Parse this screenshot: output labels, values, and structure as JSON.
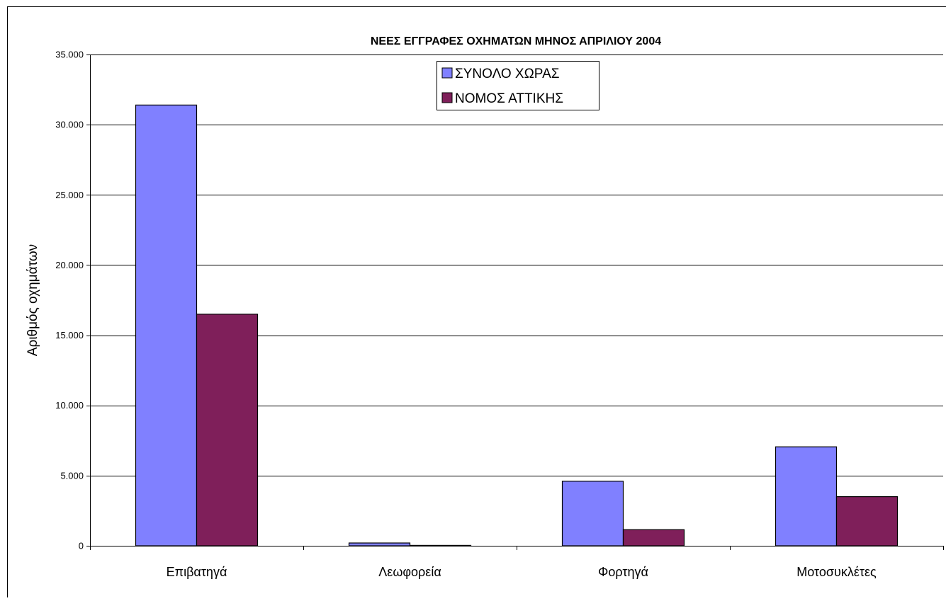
{
  "chart_data": {
    "type": "bar",
    "title": "ΝΕΕΣ ΕΓΓΡΑΦΕΣ ΟΧΗΜΑΤΩΝ ΜΗΝΟΣ ΑΠΡΙΛΙΟΥ 2004",
    "xlabel": "",
    "ylabel": "Αριθμός οχημάτων",
    "categories": [
      "Επιβατηγά",
      "Λεωφορεία",
      "Φορτηγά",
      "Μοτοσυκλέτες"
    ],
    "series": [
      {
        "name": "ΣΥΝΟΛΟ ΧΩΡΑΣ",
        "color": "#8080FF",
        "values": [
          31400,
          200,
          4600,
          7050
        ]
      },
      {
        "name": "ΝΟΜΟΣ ΑΤΤΙΚΗΣ",
        "color": "#7F1F5A",
        "values": [
          16500,
          30,
          1150,
          3500
        ]
      }
    ],
    "ylim": [
      0,
      35000
    ],
    "yticks": [
      0,
      5000,
      10000,
      15000,
      20000,
      25000,
      30000,
      35000
    ],
    "ytick_labels": [
      "0",
      "5.000",
      "10.000",
      "15.000",
      "20.000",
      "25.000",
      "30.000",
      "35.000"
    ],
    "grid": true,
    "legend_position": "top-center"
  }
}
